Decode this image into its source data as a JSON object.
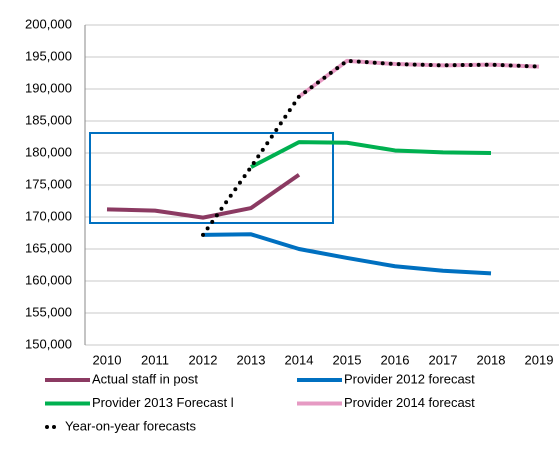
{
  "chart_data": {
    "type": "line",
    "categories": [
      "2010",
      "2011",
      "2012",
      "2013",
      "2014",
      "2015",
      "2016",
      "2017",
      "2018",
      "2019"
    ],
    "series": [
      {
        "name": "Actual staff in post",
        "color": "#8b3a62",
        "values": [
          171200,
          171000,
          169900,
          171400,
          176600,
          null,
          null,
          null,
          null,
          null
        ]
      },
      {
        "name": "Provider 2012 forecast",
        "color": "#0070c0",
        "values": [
          null,
          null,
          167200,
          167300,
          165000,
          163600,
          162300,
          161600,
          161200,
          null
        ]
      },
      {
        "name": "Provider 2013 Forecast l",
        "color": "#00b050",
        "values": [
          null,
          null,
          null,
          177800,
          181700,
          181600,
          180400,
          180100,
          180000,
          null
        ]
      },
      {
        "name": "Provider 2014 forecast",
        "color": "#e69ac3",
        "values": [
          null,
          null,
          null,
          null,
          188800,
          194400,
          193900,
          193700,
          193800,
          193500
        ]
      },
      {
        "name": "Year-on-year forecasts",
        "color": "#000000",
        "line_style": "dotted",
        "values": [
          null,
          null,
          167200,
          177800,
          188800,
          194400,
          193900,
          193700,
          193800,
          193500
        ]
      }
    ],
    "ylim": [
      150000,
      200000
    ],
    "yticks": [
      {
        "value": 150000,
        "label": "150,000"
      },
      {
        "value": 155000,
        "label": "155,000"
      },
      {
        "value": 160000,
        "label": "160,000"
      },
      {
        "value": 165000,
        "label": "165,000"
      },
      {
        "value": 170000,
        "label": "170,000"
      },
      {
        "value": 175000,
        "label": "175,000"
      },
      {
        "value": 180000,
        "label": "180,000"
      },
      {
        "value": 185000,
        "label": "185,000"
      },
      {
        "value": 190000,
        "label": "190,000"
      },
      {
        "value": 195000,
        "label": "195,000"
      },
      {
        "value": 200000,
        "label": "200,000"
      }
    ],
    "grid": true
  }
}
